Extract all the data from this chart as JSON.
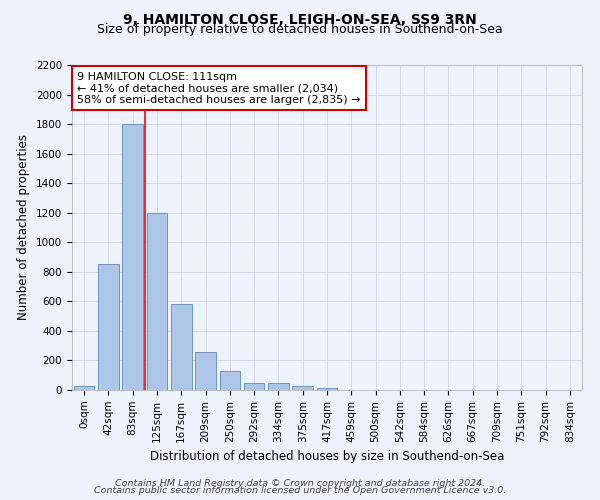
{
  "title": "9, HAMILTON CLOSE, LEIGH-ON-SEA, SS9 3RN",
  "subtitle": "Size of property relative to detached houses in Southend-on-Sea",
  "xlabel": "Distribution of detached houses by size in Southend-on-Sea",
  "ylabel": "Number of detached properties",
  "footnote1": "Contains HM Land Registry data © Crown copyright and database right 2024.",
  "footnote2": "Contains public sector information licensed under the Open Government Licence v3.0.",
  "bar_labels": [
    "0sqm",
    "42sqm",
    "83sqm",
    "125sqm",
    "167sqm",
    "209sqm",
    "250sqm",
    "292sqm",
    "334sqm",
    "375sqm",
    "417sqm",
    "459sqm",
    "500sqm",
    "542sqm",
    "584sqm",
    "626sqm",
    "667sqm",
    "709sqm",
    "751sqm",
    "792sqm",
    "834sqm"
  ],
  "bar_heights": [
    30,
    850,
    1800,
    1200,
    585,
    255,
    130,
    45,
    45,
    30,
    15,
    0,
    0,
    0,
    0,
    0,
    0,
    0,
    0,
    0,
    0
  ],
  "bar_color": "#aec6e8",
  "bar_edge_color": "#5b8db8",
  "background_color": "#eef2fb",
  "grid_color": "#c8cfe0",
  "annotation_text": "9 HAMILTON CLOSE: 111sqm\n← 41% of detached houses are smaller (2,034)\n58% of semi-detached houses are larger (2,835) →",
  "annotation_box_color": "#ffffff",
  "annotation_box_edge": "#cc0000",
  "redline_x": 2.5,
  "ylim": [
    0,
    2200
  ],
  "yticks": [
    0,
    200,
    400,
    600,
    800,
    1000,
    1200,
    1400,
    1600,
    1800,
    2000,
    2200
  ],
  "title_fontsize": 10,
  "subtitle_fontsize": 9,
  "axis_label_fontsize": 8.5,
  "tick_fontsize": 7.5,
  "annotation_fontsize": 8,
  "footnote_fontsize": 6.8
}
